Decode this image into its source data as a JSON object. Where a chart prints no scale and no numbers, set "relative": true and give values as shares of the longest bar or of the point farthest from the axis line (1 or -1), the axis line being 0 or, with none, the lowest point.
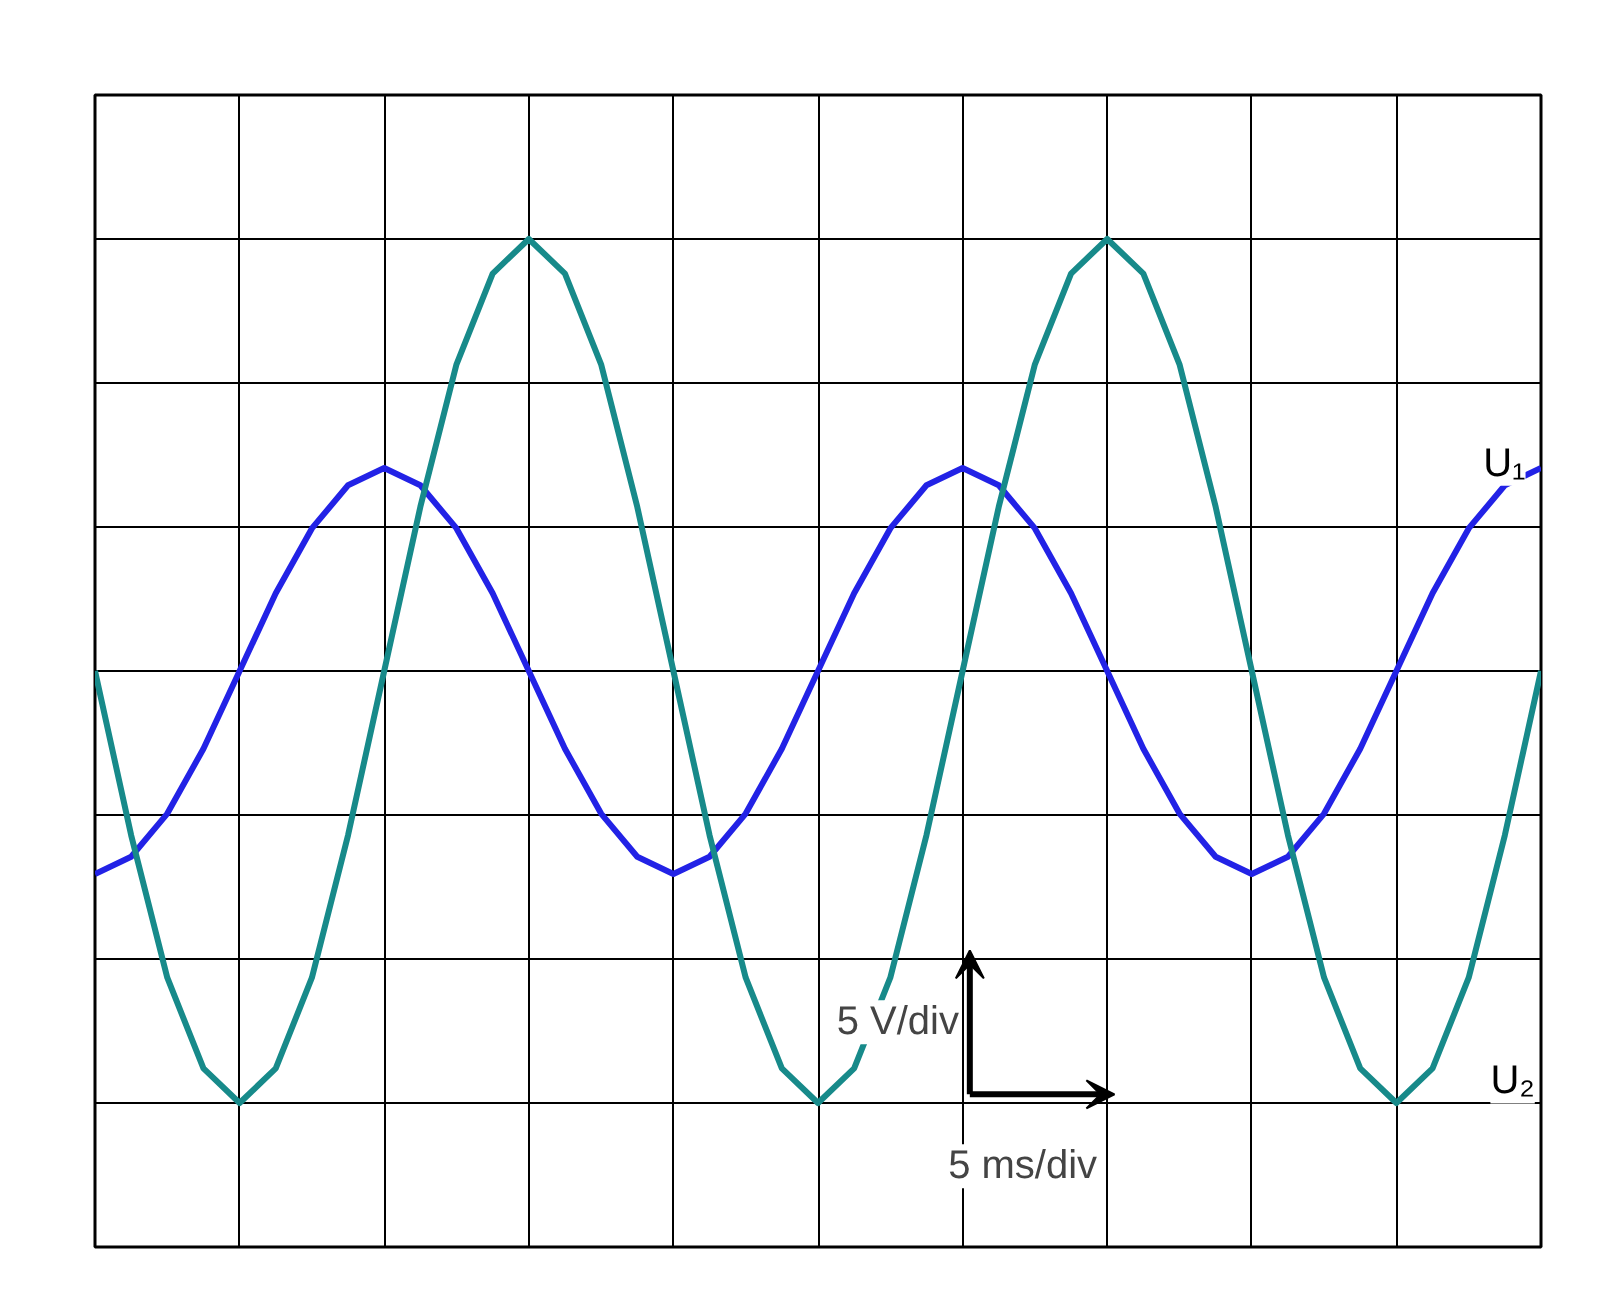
{
  "chart_data": {
    "type": "line",
    "relative": true,
    "grid": true,
    "tick_labels": false,
    "categories": [
      null,
      null,
      null,
      null,
      null,
      null,
      null,
      null,
      null,
      null,
      null,
      null,
      null,
      null,
      null,
      null,
      null,
      null,
      null,
      null,
      null,
      null,
      null,
      null,
      null,
      null,
      null,
      null,
      null,
      null,
      null,
      null,
      null,
      null,
      null,
      null,
      null,
      null,
      null,
      null,
      null
    ],
    "series": [
      {
        "name": "U₁",
        "color": "#2222e6",
        "values": [
          -0.47,
          -0.43,
          -0.33,
          -0.18,
          0,
          0.18,
          0.33,
          0.43,
          0.47,
          0.43,
          0.33,
          0.18,
          0,
          -0.18,
          -0.33,
          -0.43,
          -0.47,
          -0.43,
          -0.33,
          -0.18,
          0,
          0.18,
          0.33,
          0.43,
          0.47,
          0.43,
          0.33,
          0.18,
          0,
          -0.18,
          -0.33,
          -0.43,
          -0.47,
          -0.43,
          -0.33,
          -0.18,
          0,
          0.18,
          0.33,
          0.43,
          0.47
        ]
      },
      {
        "name": "U₂",
        "color": "#178a8a",
        "values": [
          0,
          -0.38,
          -0.71,
          -0.92,
          -1,
          -0.92,
          -0.71,
          -0.38,
          0,
          0.38,
          0.71,
          0.92,
          1,
          0.92,
          0.71,
          0.38,
          0,
          -0.38,
          -0.71,
          -0.92,
          -1,
          -0.92,
          -0.71,
          -0.38,
          0,
          0.38,
          0.71,
          0.92,
          1,
          0.92,
          0.71,
          0.38,
          0,
          -0.38,
          -0.71,
          -0.92,
          -1,
          -0.92,
          -0.71,
          -0.38,
          0
        ]
      }
    ],
    "annotations": [
      "5 V/div",
      "5 ms/div"
    ]
  }
}
